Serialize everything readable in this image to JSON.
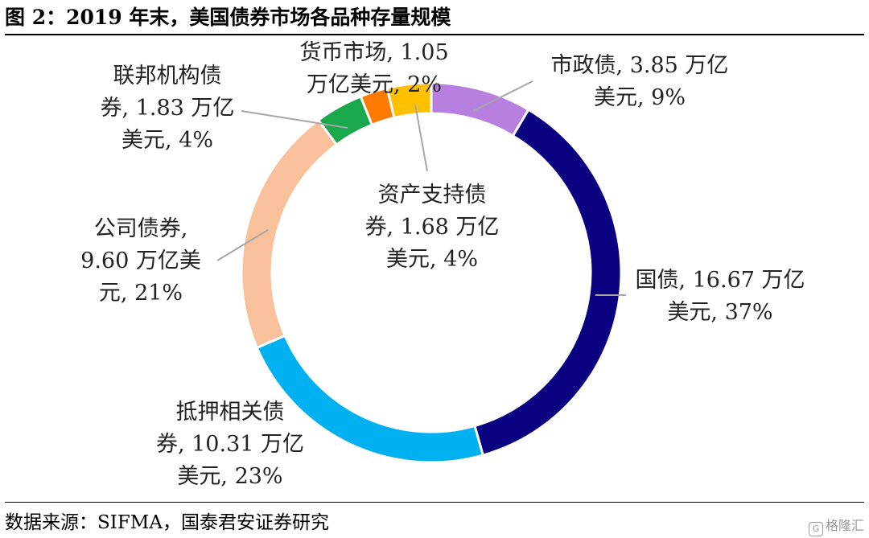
{
  "title": "图 2：2019 年末，美国债券市场各品种存量规模",
  "source": "数据来源：SIFMA，国泰君安证券研究",
  "watermark": "格隆汇",
  "chart_data": {
    "type": "pie",
    "donut": true,
    "unit": "万亿美元",
    "slices": [
      {
        "name": "市政债",
        "value": 3.85,
        "percent": 9,
        "color": "#B67FE0",
        "label_lines": [
          "市政债, 3.85 万亿",
          "美元, 9%"
        ]
      },
      {
        "name": "国债",
        "value": 16.67,
        "percent": 37,
        "color": "#0A0280",
        "label_lines": [
          "国债, 16.67 万亿",
          "美元, 37%"
        ]
      },
      {
        "name": "抵押相关债券",
        "value": 10.31,
        "percent": 23,
        "color": "#00B0F0",
        "label_lines": [
          "抵押相关债",
          "券, 10.31 万亿",
          "美元, 23%"
        ]
      },
      {
        "name": "公司债券",
        "value": 9.6,
        "percent": 21,
        "color": "#F9C19B",
        "label_lines": [
          "公司债券,",
          "9.60 万亿美",
          "元, 21%"
        ]
      },
      {
        "name": "联邦机构债券",
        "value": 1.83,
        "percent": 4,
        "color": "#19A84B",
        "label_lines": [
          "联邦机构债",
          "券, 1.83 万亿",
          "美元, 4%"
        ]
      },
      {
        "name": "货币市场",
        "value": 1.05,
        "percent": 2,
        "color": "#FF7A00",
        "label_lines": [
          "货币市场, 1.05",
          "万亿美元, 2%"
        ]
      },
      {
        "name": "资产支持债券",
        "value": 1.68,
        "percent": 4,
        "color": "#FFC000",
        "label_lines": [
          "资产支持债",
          "券, 1.68 万亿",
          "美元, 4%"
        ]
      }
    ]
  }
}
